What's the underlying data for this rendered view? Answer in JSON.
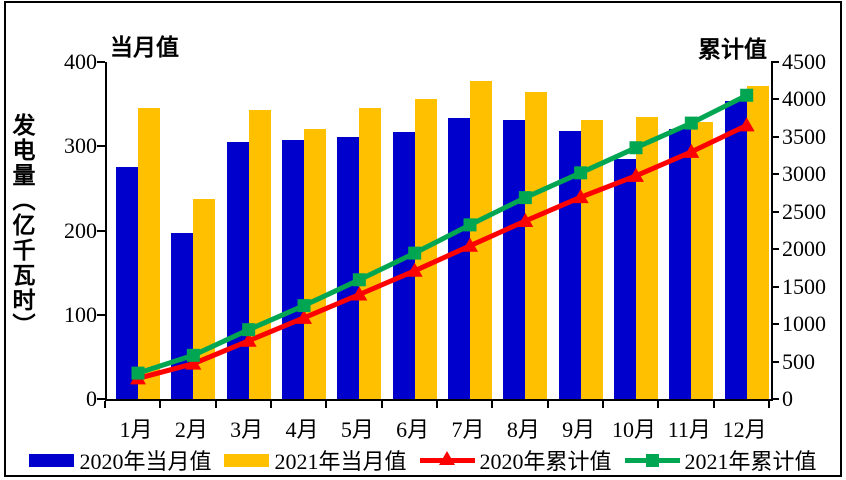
{
  "titles": {
    "left_axis_corner": "当月值",
    "right_axis_corner": "累计值"
  },
  "y_axis_label_chars": [
    "发",
    "电",
    "量",
    "︵",
    "亿",
    "千",
    "瓦",
    "时",
    "︶"
  ],
  "chart_data": {
    "type": "bar",
    "subtype": "grouped-bars-with-cumulative-lines-dual-axis",
    "title": "",
    "xlabel": "",
    "ylabel": "发电量（亿千瓦时）",
    "left_axis_title": "当月值",
    "right_axis_title": "累计值",
    "categories": [
      "1月",
      "2月",
      "3月",
      "4月",
      "5月",
      "6月",
      "7月",
      "8月",
      "9月",
      "10月",
      "11月",
      "12月"
    ],
    "series": [
      {
        "name": "2020年当月值",
        "type": "bar",
        "axis": "left",
        "color": "#0000CC",
        "values": [
          275,
          197,
          305,
          307,
          311,
          317,
          334,
          331,
          318,
          285,
          320,
          354
        ]
      },
      {
        "name": "2021年当月值",
        "type": "bar",
        "axis": "left",
        "color": "#FFC000",
        "values": [
          346,
          237,
          343,
          321,
          345,
          356,
          377,
          364,
          331,
          335,
          329,
          372
        ]
      },
      {
        "name": "2020年累计值",
        "type": "line",
        "marker": "triangle",
        "axis": "right",
        "color": "#FF0000",
        "values": [
          275,
          472,
          777,
          1084,
          1395,
          1712,
          2046,
          2377,
          2695,
          2980,
          3300,
          3654
        ]
      },
      {
        "name": "2021年累计值",
        "type": "line",
        "marker": "square",
        "axis": "right",
        "color": "#00A651",
        "values": [
          346,
          583,
          926,
          1247,
          1592,
          1948,
          2325,
          2689,
          3020,
          3355,
          3684,
          4056
        ]
      }
    ],
    "left_axis": {
      "min": 0,
      "max": 400,
      "ticks": [
        400,
        300,
        200,
        100,
        0
      ]
    },
    "right_axis": {
      "min": 0,
      "max": 4500,
      "ticks": [
        4500,
        4000,
        3500,
        3000,
        2500,
        2000,
        1500,
        1000,
        500,
        0
      ]
    },
    "grid": false,
    "legend_position": "bottom"
  },
  "legend": {
    "items": [
      {
        "label": "2020年当月值",
        "swatch": "bar",
        "color": "#0000CC"
      },
      {
        "label": "2021年当月值",
        "swatch": "bar",
        "color": "#FFC000"
      },
      {
        "label": "2020年累计值",
        "swatch": "line-triangle",
        "color": "#FF0000"
      },
      {
        "label": "2021年累计值",
        "swatch": "line-square",
        "color": "#00A651"
      }
    ]
  }
}
